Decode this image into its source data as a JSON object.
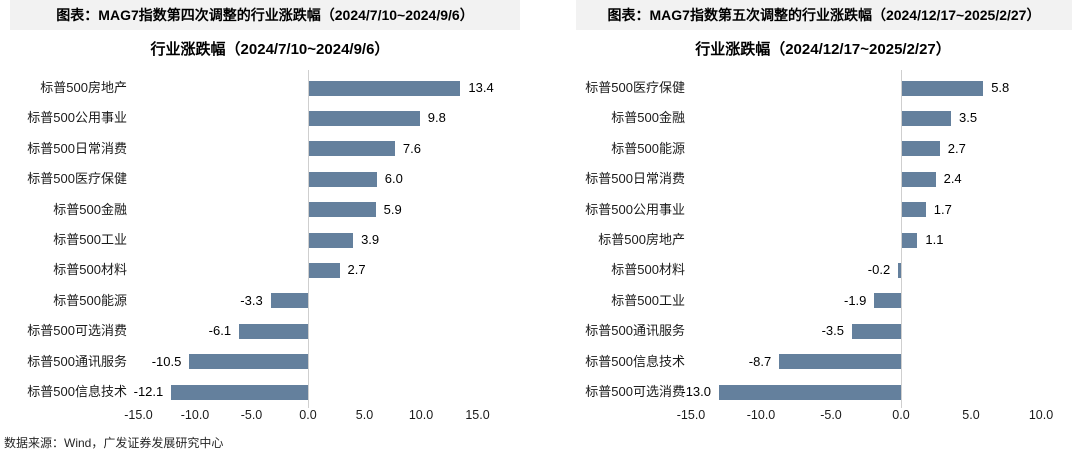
{
  "page": {
    "footer": "数据来源：Wind，广发证券发展研究中心"
  },
  "colors": {
    "bar": "#64809d",
    "header_bg": "#f2f2f2",
    "axis_line": "#cfcfcf",
    "text": "#000000"
  },
  "chart_data": [
    {
      "type": "bar",
      "orientation": "horizontal",
      "header": "图表：MAG7指数第四次调整的行业涨跌幅（2024/7/10~2024/9/6）",
      "title": "行业涨跌幅（2024/7/10~2024/9/6）",
      "categories": [
        "标普500房地产",
        "标普500公用事业",
        "标普500日常消费",
        "标普500医疗保健",
        "标普500金融",
        "标普500工业",
        "标普500材料",
        "标普500能源",
        "标普500可选消费",
        "标普500通讯服务",
        "标普500信息技术"
      ],
      "values": [
        13.4,
        9.8,
        7.6,
        6.0,
        5.9,
        3.9,
        2.7,
        -3.3,
        -6.1,
        -10.5,
        -12.1
      ],
      "x_ticks": [
        -15,
        -10,
        -5,
        0,
        5,
        10,
        15
      ],
      "x_tick_labels": [
        "-15.0",
        "-10.0",
        "-5.0",
        "0.0",
        "5.0",
        "10.0",
        "15.0"
      ],
      "xlim": [
        -15,
        15
      ],
      "grid": "none",
      "legend": "none"
    },
    {
      "type": "bar",
      "orientation": "horizontal",
      "header": "图表：MAG7指数第五次调整的行业涨跌幅（2024/12/17~2025/2/27）",
      "title": "行业涨跌幅（2024/12/17~2025/2/27）",
      "categories": [
        "标普500医疗保健",
        "标普500金融",
        "标普500能源",
        "标普500日常消费",
        "标普500公用事业",
        "标普500房地产",
        "标普500材料",
        "标普500工业",
        "标普500通讯服务",
        "标普500信息技术",
        "标普500可选消费"
      ],
      "values": [
        5.8,
        3.5,
        2.7,
        2.4,
        1.7,
        1.1,
        -0.2,
        -1.9,
        -3.5,
        -8.7,
        -13.0
      ],
      "x_ticks": [
        -15,
        -10,
        -5,
        0,
        5,
        10
      ],
      "x_tick_labels": [
        "-15.0",
        "-10.0",
        "-5.0",
        "0.0",
        "5.0",
        "10.0"
      ],
      "xlim": [
        -15,
        10
      ],
      "grid": "none",
      "legend": "none"
    }
  ]
}
